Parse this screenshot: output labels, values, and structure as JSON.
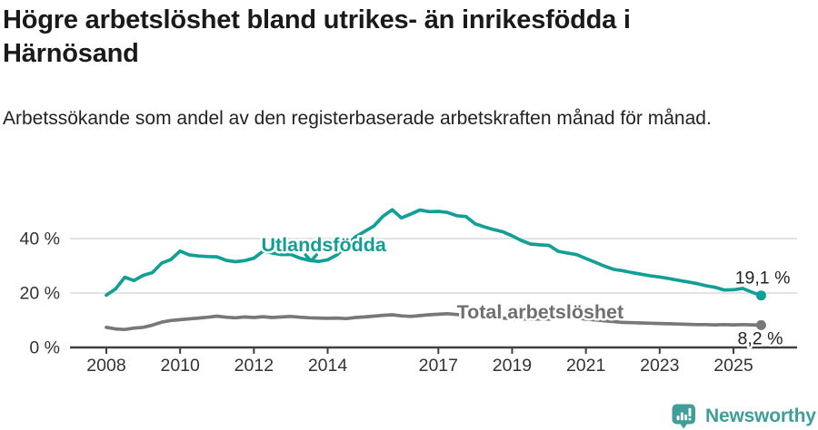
{
  "chart_data": {
    "type": "line",
    "title": "Högre arbetslöshet bland utrikes- än inrikesfödda i Härnösand",
    "subtitle": "Arbetssökande som andel av den registerbaserade arbetskraften månad för månad.",
    "x_unit": "year",
    "x_start": 2008,
    "x_step": 0.25,
    "x_end": 2025.75,
    "xlim": [
      2007.0,
      2026.7
    ],
    "ylim": [
      0,
      56
    ],
    "grid": "horizontal-only",
    "grid_values": [
      20,
      40
    ],
    "x_ticks": [
      {
        "value": 2008,
        "label": "2008"
      },
      {
        "value": 2010,
        "label": "2010"
      },
      {
        "value": 2012,
        "label": "2012"
      },
      {
        "value": 2014,
        "label": "2014"
      },
      {
        "value": 2017,
        "label": "2017"
      },
      {
        "value": 2019,
        "label": "2019"
      },
      {
        "value": 2021,
        "label": "2021"
      },
      {
        "value": 2023,
        "label": "2023"
      },
      {
        "value": 2025,
        "label": "2025"
      }
    ],
    "y_ticks": [
      {
        "value": 0,
        "label": "0 %"
      },
      {
        "value": 20,
        "label": "20 %"
      },
      {
        "value": 40,
        "label": "40 %"
      }
    ],
    "series": [
      {
        "name": "Utlandsfödda",
        "color": "#12a096",
        "end_label": "19,1 %",
        "end_value": 19.1,
        "label_anchor": {
          "year": 2012.2,
          "value": 35.3
        },
        "caret": {
          "year": 2013.55,
          "value": 33.0
        },
        "values": [
          19.2,
          21.5,
          25.8,
          24.6,
          26.5,
          27.5,
          31.0,
          32.3,
          35.4,
          34.0,
          33.6,
          33.4,
          33.3,
          32.0,
          31.5,
          31.9,
          32.8,
          35.4,
          34.7,
          34.1,
          34.2,
          32.8,
          32.0,
          31.6,
          32.2,
          34.0,
          37.2,
          40.6,
          42.6,
          44.6,
          48.2,
          50.6,
          47.6,
          49.0,
          50.5,
          49.9,
          50.0,
          49.6,
          48.4,
          48.1,
          45.4,
          44.3,
          43.3,
          42.5,
          41.0,
          39.3,
          38.0,
          37.7,
          37.5,
          35.3,
          34.7,
          34.1,
          32.7,
          31.3,
          29.9,
          28.7,
          28.2,
          27.5,
          26.9,
          26.3,
          25.9,
          25.3,
          24.7,
          24.1,
          23.5,
          22.7,
          22.1,
          21.1,
          21.2,
          21.7,
          20.3,
          19.1
        ]
      },
      {
        "name": "Total arbetslöshet",
        "color": "#787878",
        "label_color": "#6f6f6f",
        "end_label": "8,2 %",
        "end_value": 8.2,
        "label_anchor": {
          "year": 2017.5,
          "value": 10.65
        },
        "values": [
          7.4,
          6.8,
          6.6,
          7.1,
          7.4,
          8.2,
          9.3,
          9.9,
          10.2,
          10.5,
          10.8,
          11.1,
          11.5,
          11.1,
          10.9,
          11.2,
          11.0,
          11.3,
          11.0,
          11.2,
          11.4,
          11.1,
          10.9,
          10.8,
          10.7,
          10.8,
          10.6,
          11.0,
          11.2,
          11.5,
          11.8,
          12.0,
          11.6,
          11.4,
          11.7,
          12.0,
          12.2,
          12.4,
          12.1,
          11.8,
          11.4,
          11.2,
          11.0,
          10.8,
          10.6,
          10.5,
          10.4,
          10.5,
          10.4,
          11.0,
          11.2,
          10.8,
          10.4,
          10.1,
          9.8,
          9.5,
          9.2,
          9.1,
          9.0,
          8.9,
          8.8,
          8.7,
          8.6,
          8.5,
          8.4,
          8.4,
          8.3,
          8.4,
          8.3,
          8.4,
          8.3,
          8.2
        ]
      }
    ],
    "colors": {
      "grid": "#d9d9d9",
      "axis": "#404040",
      "tick_text": "#333333",
      "end_label_text": "#222222"
    }
  },
  "footer": {
    "brand": "Newsworthy",
    "brand_color": "#3f9e98"
  }
}
